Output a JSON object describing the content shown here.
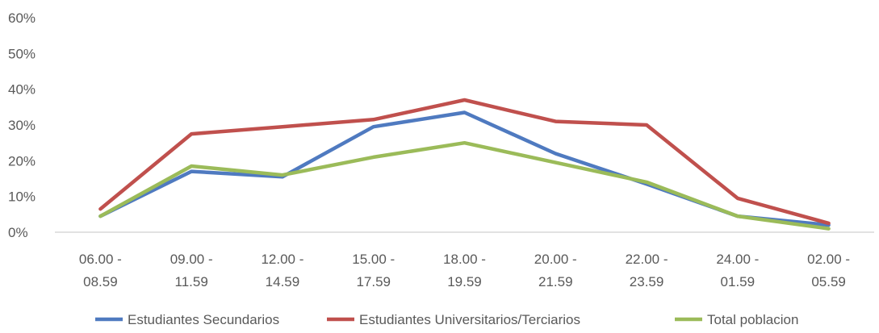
{
  "chart_data": {
    "type": "line",
    "title": "",
    "xlabel": "",
    "ylabel": "",
    "categories": [
      [
        "06.00 -",
        "08.59"
      ],
      [
        "09.00 -",
        "11.59"
      ],
      [
        "12.00 -",
        "14.59"
      ],
      [
        "15.00 -",
        "17.59"
      ],
      [
        "18.00 -",
        "19.59"
      ],
      [
        "20.00 -",
        "21.59"
      ],
      [
        "22.00 -",
        "23.59"
      ],
      [
        "24.00 -",
        "01.59"
      ],
      [
        "02.00 -",
        "05.59"
      ]
    ],
    "ylim": [
      0,
      60
    ],
    "yticks": [
      "0%",
      "10%",
      "20%",
      "30%",
      "40%",
      "50%",
      "60%"
    ],
    "ytick_values": [
      0,
      10,
      20,
      30,
      40,
      50,
      60
    ],
    "grid": false,
    "legend_position": "bottom",
    "series": [
      {
        "name": "Estudiantes Secundarios",
        "color": "#4f7ac0",
        "values": [
          4.5,
          17,
          15.5,
          29.5,
          33.5,
          22,
          13.5,
          4.5,
          2
        ]
      },
      {
        "name": "Estudiantes Universitarios/Terciarios",
        "color": "#c0504d",
        "values": [
          6.5,
          27.5,
          29.5,
          31.5,
          37,
          31,
          30,
          9.5,
          2.5
        ]
      },
      {
        "name": "Total poblacion",
        "color": "#9bbb59",
        "values": [
          4.5,
          18.5,
          16,
          21,
          25,
          19.5,
          14,
          4.5,
          1
        ]
      }
    ]
  }
}
